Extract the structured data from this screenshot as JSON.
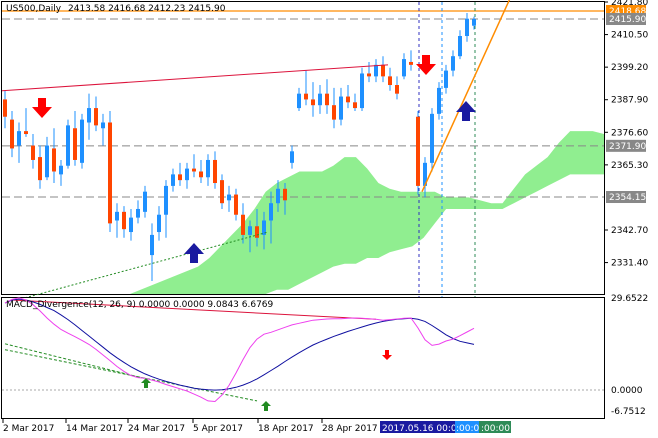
{
  "header": {
    "symbol": "US500,Daily",
    "ohlc": "2413.58 2416.68 2412.23 2415.90"
  },
  "indicator": {
    "name": "MACD_Divergence(12, 26, 9) 0.0000 0.0000 9.0843 6.6769"
  },
  "chart_data": [
    {
      "type": "candlestick",
      "symbol": "US500",
      "timeframe": "Daily",
      "ylim": [
        2320.5,
        2421.8
      ],
      "price_axis_labels": [
        "2421.80",
        "2410.50",
        "2399.20",
        "2387.90",
        "2376.60",
        "2365.30",
        "2342.70",
        "2331.40"
      ],
      "price_tags": [
        {
          "label": "2418.68",
          "color": "#ff8c00"
        },
        {
          "label": "2415.90",
          "color": "#888888"
        },
        {
          "label": "2371.90",
          "color": "#888888"
        },
        {
          "label": "2354.15",
          "color": "#888888"
        }
      ],
      "date_labels": [
        "2 Mar 2017",
        "14 Mar 2017",
        "24 Mar 2017",
        "5 Apr 2017",
        "18 Apr 2017",
        "28 Apr 2017"
      ],
      "date_highlight": "2017.05.16 00:00",
      "date_highlight_extra": [
        ":00:00",
        ":00:00"
      ],
      "candles": [
        {
          "o": 2388,
          "h": 2391,
          "l": 2378,
          "c": 2382
        },
        {
          "o": 2381,
          "h": 2384,
          "l": 2368,
          "c": 2371
        },
        {
          "o": 2372,
          "h": 2380,
          "l": 2366,
          "c": 2377
        },
        {
          "o": 2377,
          "h": 2385,
          "l": 2375,
          "c": 2376
        },
        {
          "o": 2372,
          "h": 2376,
          "l": 2364,
          "c": 2367
        },
        {
          "o": 2368,
          "h": 2372,
          "l": 2357,
          "c": 2360
        },
        {
          "o": 2361,
          "h": 2375,
          "l": 2360,
          "c": 2372
        },
        {
          "o": 2371,
          "h": 2378,
          "l": 2359,
          "c": 2363
        },
        {
          "o": 2362,
          "h": 2367,
          "l": 2358,
          "c": 2365
        },
        {
          "o": 2365,
          "h": 2381,
          "l": 2364,
          "c": 2379
        },
        {
          "o": 2378,
          "h": 2384,
          "l": 2365,
          "c": 2367
        },
        {
          "o": 2366,
          "h": 2383,
          "l": 2364,
          "c": 2381
        },
        {
          "o": 2380,
          "h": 2390,
          "l": 2374,
          "c": 2385
        },
        {
          "o": 2385,
          "h": 2389,
          "l": 2377,
          "c": 2379
        },
        {
          "o": 2378,
          "h": 2383,
          "l": 2372,
          "c": 2380
        },
        {
          "o": 2380,
          "h": 2384,
          "l": 2342,
          "c": 2345
        },
        {
          "o": 2346,
          "h": 2352,
          "l": 2340,
          "c": 2349
        },
        {
          "o": 2349,
          "h": 2351,
          "l": 2340,
          "c": 2343
        },
        {
          "o": 2342,
          "h": 2350,
          "l": 2339,
          "c": 2347
        },
        {
          "o": 2347,
          "h": 2353,
          "l": 2345,
          "c": 2350
        },
        {
          "o": 2349,
          "h": 2358,
          "l": 2347,
          "c": 2356
        },
        {
          "o": 2334,
          "h": 2345,
          "l": 2325,
          "c": 2341
        },
        {
          "o": 2342,
          "h": 2351,
          "l": 2339,
          "c": 2348
        },
        {
          "o": 2348,
          "h": 2360,
          "l": 2340,
          "c": 2358
        },
        {
          "o": 2358,
          "h": 2364,
          "l": 2356,
          "c": 2362
        },
        {
          "o": 2362,
          "h": 2366,
          "l": 2358,
          "c": 2360
        },
        {
          "o": 2360,
          "h": 2366,
          "l": 2357,
          "c": 2364
        },
        {
          "o": 2364,
          "h": 2369,
          "l": 2361,
          "c": 2363
        },
        {
          "o": 2363,
          "h": 2367,
          "l": 2359,
          "c": 2361
        },
        {
          "o": 2361,
          "h": 2369,
          "l": 2358,
          "c": 2367
        },
        {
          "o": 2367,
          "h": 2370,
          "l": 2357,
          "c": 2359
        },
        {
          "o": 2360,
          "h": 2362,
          "l": 2350,
          "c": 2352
        },
        {
          "o": 2353,
          "h": 2358,
          "l": 2349,
          "c": 2355
        },
        {
          "o": 2355,
          "h": 2357,
          "l": 2346,
          "c": 2348
        },
        {
          "o": 2348,
          "h": 2352,
          "l": 2338,
          "c": 2341
        },
        {
          "o": 2341,
          "h": 2346,
          "l": 2335,
          "c": 2344
        },
        {
          "o": 2344,
          "h": 2350,
          "l": 2337,
          "c": 2340
        },
        {
          "o": 2341,
          "h": 2349,
          "l": 2336,
          "c": 2346
        },
        {
          "o": 2346,
          "h": 2356,
          "l": 2338,
          "c": 2352
        },
        {
          "o": 2352,
          "h": 2360,
          "l": 2349,
          "c": 2357
        },
        {
          "o": 2357,
          "h": 2359,
          "l": 2348,
          "c": 2353
        },
        {
          "o": 2366,
          "h": 2372,
          "l": 2364,
          "c": 2370
        },
        {
          "o": 2385,
          "h": 2392,
          "l": 2384,
          "c": 2390
        },
        {
          "o": 2390,
          "h": 2398,
          "l": 2386,
          "c": 2388
        },
        {
          "o": 2388,
          "h": 2394,
          "l": 2382,
          "c": 2386
        },
        {
          "o": 2386,
          "h": 2393,
          "l": 2383,
          "c": 2390
        },
        {
          "o": 2390,
          "h": 2395,
          "l": 2383,
          "c": 2386
        },
        {
          "o": 2386,
          "h": 2392,
          "l": 2378,
          "c": 2381
        },
        {
          "o": 2381,
          "h": 2392,
          "l": 2379,
          "c": 2389
        },
        {
          "o": 2389,
          "h": 2393,
          "l": 2385,
          "c": 2387
        },
        {
          "o": 2387,
          "h": 2390,
          "l": 2384,
          "c": 2385
        },
        {
          "o": 2385,
          "h": 2399,
          "l": 2384,
          "c": 2397
        },
        {
          "o": 2397,
          "h": 2401,
          "l": 2394,
          "c": 2396
        },
        {
          "o": 2396,
          "h": 2402,
          "l": 2394,
          "c": 2400
        },
        {
          "o": 2400,
          "h": 2403,
          "l": 2394,
          "c": 2396
        },
        {
          "o": 2396,
          "h": 2399,
          "l": 2391,
          "c": 2393
        },
        {
          "o": 2393,
          "h": 2396,
          "l": 2388,
          "c": 2390
        },
        {
          "o": 2396,
          "h": 2404,
          "l": 2395,
          "c": 2402
        },
        {
          "o": 2401,
          "h": 2405,
          "l": 2398,
          "c": 2400
        },
        {
          "o": 2382,
          "h": 2384,
          "l": 2355,
          "c": 2358
        },
        {
          "o": 2358,
          "h": 2368,
          "l": 2354,
          "c": 2366
        },
        {
          "o": 2366,
          "h": 2385,
          "l": 2363,
          "c": 2383
        },
        {
          "o": 2383,
          "h": 2394,
          "l": 2381,
          "c": 2392
        },
        {
          "o": 2392,
          "h": 2400,
          "l": 2390,
          "c": 2398
        },
        {
          "o": 2398,
          "h": 2405,
          "l": 2396,
          "c": 2403
        },
        {
          "o": 2403,
          "h": 2412,
          "l": 2402,
          "c": 2410
        },
        {
          "o": 2410,
          "h": 2418,
          "l": 2408,
          "c": 2416
        },
        {
          "o": 2413.58,
          "h": 2416.68,
          "l": 2412.23,
          "c": 2415.9
        }
      ],
      "ichimoku_cloud": {
        "top": [
          2330,
          2333,
          2337,
          2341,
          2345,
          2350,
          2356,
          2359,
          2361,
          2363,
          2363,
          2363,
          2365,
          2368,
          2368,
          2364,
          2359,
          2357,
          2356,
          2356,
          2356,
          2356,
          2354,
          2354,
          2354,
          2353,
          2352,
          2352,
          2357,
          2362,
          2365,
          2368,
          2373,
          2377,
          2377,
          2377,
          2376
        ],
        "bottom": [
          2320.5,
          2320.5,
          2320.5,
          2320.5,
          2320.5,
          2320.5,
          2320.5,
          2322,
          2322,
          2324,
          2326,
          2328,
          2330,
          2331,
          2331,
          2333,
          2333,
          2335,
          2336,
          2337,
          2340,
          2345,
          2350,
          2350,
          2350,
          2350,
          2350,
          2350,
          2352,
          2354,
          2356,
          2358,
          2360,
          2362,
          2362,
          2362,
          2362
        ]
      },
      "ichimoku_start_index": 44
    },
    {
      "type": "line",
      "name": "MACD_Divergence(12, 26, 9)",
      "axis_labels": [
        "29.6522",
        "0.0000",
        "-6.7512"
      ],
      "ylim": [
        -9.0,
        29.6522
      ],
      "signal_values": [
        28,
        29,
        29.3,
        29,
        28.4,
        27.6,
        26.6,
        25.6,
        24.2,
        22.7,
        21,
        19.2,
        17.4,
        15.6,
        13.8,
        12,
        10.4,
        8.9,
        7.5,
        6.3,
        5.2,
        4.3,
        3.5,
        2.8,
        2.2,
        1.6,
        1.1,
        0.6,
        0.3,
        0.1,
        0,
        0.1,
        0.4,
        0.9,
        1.6,
        2.5,
        3.6,
        4.9,
        6.3,
        7.7,
        9.2,
        10.6,
        12,
        13.3,
        14.5,
        15.5,
        16.4,
        17.3,
        18.1,
        18.9,
        19.6,
        20.3,
        21,
        21.6,
        22.1,
        22.5,
        22.8,
        23,
        23.1,
        22.8,
        22.1,
        20.8,
        19.3,
        17.8,
        16.6,
        15.7,
        15.2,
        14.7
      ],
      "main_values": [
        28,
        29.2,
        29.7,
        29,
        27.5,
        25.5,
        23.2,
        21.2,
        19.5,
        18.3,
        17.2,
        16,
        14.7,
        13.1,
        11.3,
        9.5,
        7.6,
        6,
        4.7,
        4,
        3.8,
        3.2,
        2.6,
        1.8,
        1.1,
        0.4,
        -0.3,
        -1.3,
        -2.3,
        -3.5,
        -3.7,
        -1.6,
        1.5,
        5.5,
        9.8,
        13.7,
        16.4,
        18,
        18.6,
        19.4,
        20.2,
        21,
        21.5,
        22,
        22.5,
        22.7,
        22.9,
        23,
        23,
        23.1,
        23.2,
        23.1,
        23,
        22.8,
        22.5,
        22.7,
        22.9,
        23.1,
        23.2,
        20,
        16.2,
        14.4,
        14.8,
        15.8,
        16.4,
        17.5,
        18.7,
        19.9
      ],
      "divergence_lines": [
        {
          "from_index": 1,
          "from_value": 29.0,
          "to_index": 53,
          "to_value": 22.8,
          "color": "#dc143c"
        },
        {
          "from_index": 0,
          "from_value": 14.9,
          "to_index": 20,
          "to_value": 3.7,
          "color": "#228b22"
        },
        {
          "from_index": 0,
          "from_value": 13.0,
          "to_index": 36,
          "to_value": -3.5,
          "color": "#228b22"
        }
      ]
    }
  ]
}
